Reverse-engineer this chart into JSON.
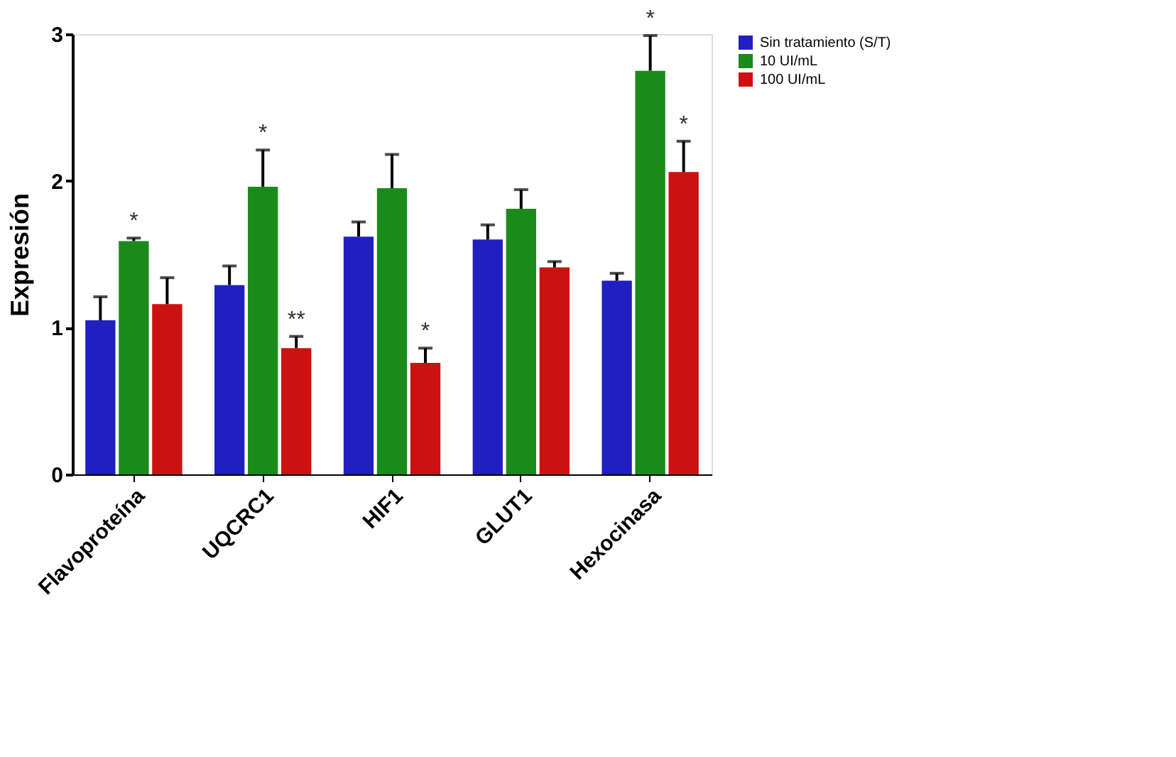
{
  "chart_data": {
    "type": "bar",
    "ylabel": "Expresión",
    "categories": [
      "Flavoproteína",
      "UQCRC1",
      "HIF1",
      "GLUT1",
      "Hexocinasa"
    ],
    "series": [
      {
        "name": "Sin tratamiento (S/T)",
        "color": "#2020c0",
        "values": [
          1.05,
          1.29,
          1.62,
          1.6,
          1.32
        ],
        "errors": [
          [
            1.05,
            1.21
          ],
          [
            1.29,
            1.42
          ],
          [
            1.62,
            1.72
          ],
          [
            1.6,
            1.7
          ],
          [
            1.32,
            1.37
          ]
        ]
      },
      {
        "name": "10 UI/mL",
        "color": "#1a8a1a",
        "values": [
          1.59,
          1.96,
          1.95,
          1.81,
          2.75
        ],
        "errors": [
          [
            1.59,
            1.61
          ],
          [
            1.96,
            2.21
          ],
          [
            1.95,
            2.18
          ],
          [
            1.81,
            1.94
          ],
          [
            2.75,
            2.99
          ]
        ],
        "value_labels": [
          "*",
          "*",
          null,
          null,
          "*"
        ]
      },
      {
        "name": "100 UI/mL",
        "color": "#cc1111",
        "values": [
          1.16,
          0.86,
          0.76,
          1.41,
          2.06
        ],
        "errors": [
          [
            1.16,
            1.34
          ],
          [
            0.86,
            0.94
          ],
          [
            0.76,
            0.86
          ],
          [
            1.41,
            1.45
          ],
          [
            2.06,
            2.27
          ]
        ],
        "value_labels": [
          null,
          "**",
          "*",
          null,
          "*"
        ]
      }
    ],
    "ylim": [
      0,
      3
    ],
    "yticks": [
      0,
      1,
      2,
      3
    ],
    "grid": false,
    "legend": "top right"
  }
}
